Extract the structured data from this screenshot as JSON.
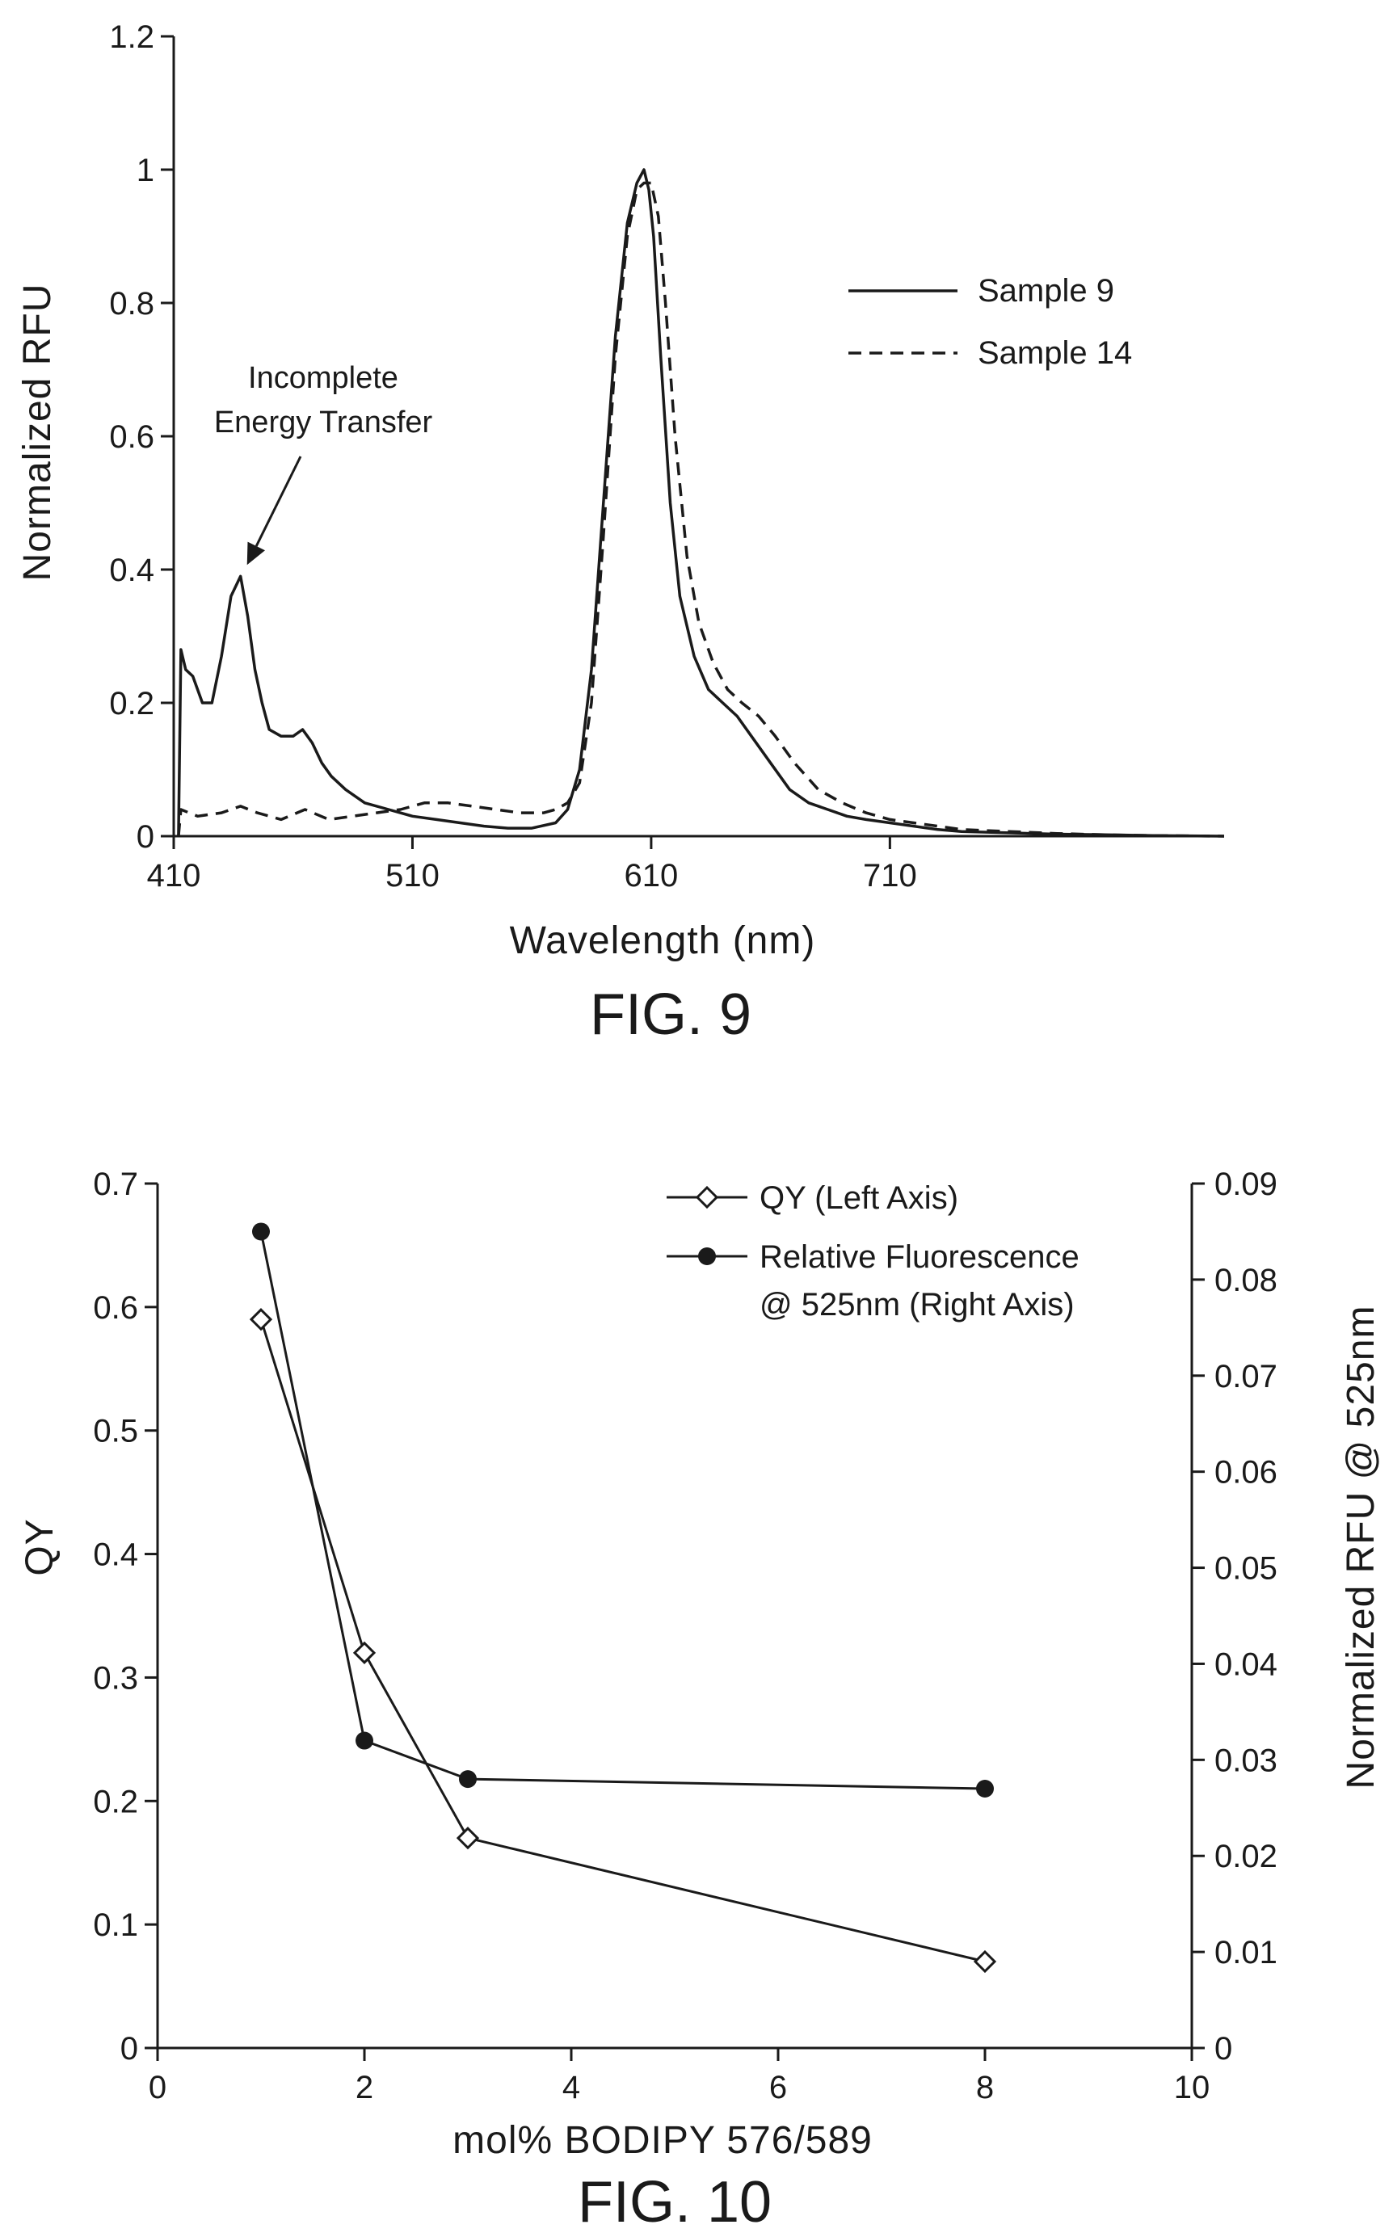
{
  "chart_data": [
    {
      "type": "line",
      "caption": "FIG. 9",
      "xlabel": "Wavelength (nm)",
      "ylabel": "Normalized RFU",
      "xlim": [
        410,
        850
      ],
      "ylim": [
        0,
        1.2
      ],
      "x_ticks": [
        410,
        510,
        610,
        710
      ],
      "y_ticks": [
        "0",
        "0.2",
        "0.4",
        "0.6",
        "0.8",
        "1",
        "1.2"
      ],
      "y_tick_values": [
        0,
        0.2,
        0.4,
        0.6,
        0.8,
        1.0,
        1.2
      ],
      "grid": false,
      "legend_position": "top-right",
      "annotation": {
        "lines": [
          "Incomplete",
          "Energy Transfer"
        ],
        "points_to": [
          438,
          0.39
        ]
      },
      "series": [
        {
          "name": "Sample 9",
          "style": "solid",
          "x": [
            412,
            413,
            415,
            418,
            422,
            426,
            430,
            434,
            438,
            441,
            444,
            447,
            450,
            455,
            460,
            464,
            468,
            472,
            476,
            482,
            490,
            500,
            510,
            520,
            530,
            540,
            550,
            560,
            570,
            575,
            580,
            585,
            590,
            595,
            600,
            604,
            607,
            609,
            611,
            614,
            618,
            622,
            628,
            634,
            640,
            646,
            652,
            660,
            668,
            676,
            684,
            692,
            700,
            710,
            720,
            730,
            740,
            760,
            780,
            800,
            820,
            850
          ],
          "y": [
            0.0,
            0.28,
            0.25,
            0.24,
            0.2,
            0.2,
            0.27,
            0.36,
            0.39,
            0.33,
            0.25,
            0.2,
            0.16,
            0.15,
            0.15,
            0.16,
            0.14,
            0.11,
            0.09,
            0.07,
            0.05,
            0.04,
            0.03,
            0.025,
            0.02,
            0.015,
            0.012,
            0.012,
            0.02,
            0.04,
            0.1,
            0.25,
            0.5,
            0.75,
            0.92,
            0.98,
            1.0,
            0.97,
            0.9,
            0.72,
            0.5,
            0.36,
            0.27,
            0.22,
            0.2,
            0.18,
            0.15,
            0.11,
            0.07,
            0.05,
            0.04,
            0.03,
            0.025,
            0.02,
            0.015,
            0.01,
            0.007,
            0.005,
            0.003,
            0.002,
            0.001,
            0.0
          ]
        },
        {
          "name": "Sample 14",
          "style": "dashed",
          "x": [
            412,
            413,
            420,
            430,
            438,
            445,
            455,
            465,
            475,
            485,
            495,
            505,
            515,
            525,
            535,
            545,
            555,
            565,
            570,
            575,
            580,
            585,
            590,
            595,
            600,
            604,
            607,
            610,
            613,
            616,
            620,
            625,
            630,
            636,
            642,
            648,
            655,
            662,
            670,
            680,
            690,
            700,
            710,
            720,
            730,
            740,
            760,
            780,
            800,
            820,
            850
          ],
          "y": [
            0.0,
            0.04,
            0.03,
            0.035,
            0.045,
            0.035,
            0.025,
            0.04,
            0.025,
            0.03,
            0.035,
            0.04,
            0.05,
            0.05,
            0.045,
            0.04,
            0.035,
            0.035,
            0.04,
            0.05,
            0.08,
            0.2,
            0.45,
            0.72,
            0.9,
            0.97,
            0.98,
            0.98,
            0.93,
            0.8,
            0.6,
            0.42,
            0.32,
            0.26,
            0.22,
            0.2,
            0.18,
            0.15,
            0.11,
            0.07,
            0.05,
            0.035,
            0.025,
            0.02,
            0.015,
            0.01,
            0.007,
            0.004,
            0.002,
            0.001,
            0.0
          ]
        }
      ]
    },
    {
      "type": "line",
      "caption": "FIG. 10",
      "xlabel": "mol% BODIPY 576/589",
      "ylabel": "QY",
      "y2label": "Normalized RFU @ 525nm",
      "xlim": [
        0,
        10
      ],
      "ylim": [
        0,
        0.7
      ],
      "y2lim": [
        0,
        0.09
      ],
      "x_ticks": [
        "0",
        "2",
        "4",
        "6",
        "8",
        "10"
      ],
      "x_tick_values": [
        0,
        2,
        4,
        6,
        8,
        10
      ],
      "y_ticks": [
        "0",
        "0.1",
        "0.2",
        "0.3",
        "0.4",
        "0.5",
        "0.6",
        "0.7"
      ],
      "y_tick_values": [
        0,
        0.1,
        0.2,
        0.3,
        0.4,
        0.5,
        0.6,
        0.7
      ],
      "y2_ticks": [
        "0",
        "0.01",
        "0.02",
        "0.03",
        "0.04",
        "0.05",
        "0.06",
        "0.07",
        "0.08",
        "0.09"
      ],
      "y2_tick_values": [
        0,
        0.01,
        0.02,
        0.03,
        0.04,
        0.05,
        0.06,
        0.07,
        0.08,
        0.09
      ],
      "grid": false,
      "legend_position": "top-right",
      "series": [
        {
          "name": "QY (Left Axis)",
          "axis": "left",
          "marker": "open-diamond",
          "x": [
            1,
            2,
            3,
            8
          ],
          "y": [
            0.59,
            0.32,
            0.17,
            0.07
          ]
        },
        {
          "name_lines": [
            "Relative Fluorescence",
            "@ 525nm (Right Axis)"
          ],
          "axis": "right",
          "marker": "filled-circle",
          "x": [
            1,
            2,
            3,
            8
          ],
          "y": [
            0.085,
            0.032,
            0.028,
            0.027
          ]
        }
      ]
    }
  ]
}
